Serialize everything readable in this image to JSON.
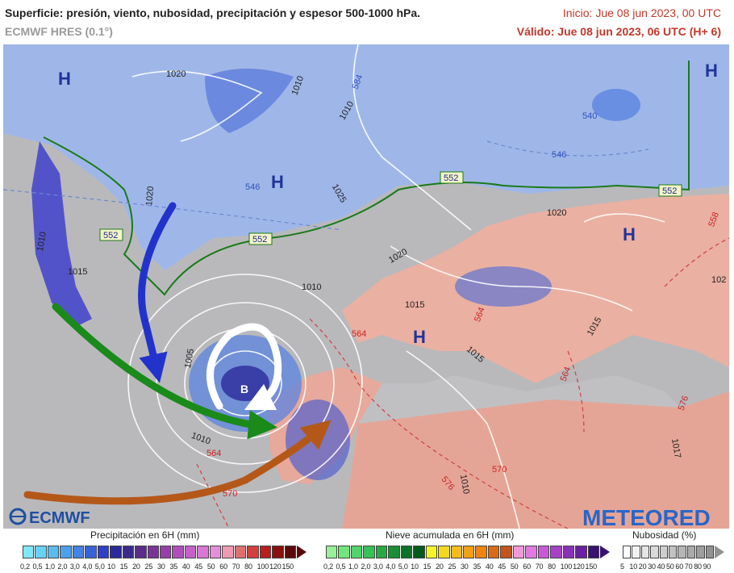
{
  "header": {
    "title": "Superficie: presión, viento, nubosidad, precipitación y espesor 500-1000 hPa.",
    "subtitle": "ECMWF HRES (0.1°)",
    "init_label": "Inicio: Jue 08 jun 2023, 00 UTC",
    "valid_label": "Válido: Jue 08 jun 2023, 06 UTC (H+ 6)"
  },
  "logos": {
    "ecmwf": "ECMWF",
    "meteored": "METEORED"
  },
  "map_labels": {
    "pressure_centers": [
      "H",
      "H",
      "H",
      "H",
      "H",
      "B"
    ],
    "isobars": [
      "1020",
      "1020",
      "1010",
      "1005",
      "1010",
      "1015",
      "1025",
      "1020",
      "1020",
      "1015",
      "1015",
      "1015",
      "1010",
      "1010",
      "1010",
      "1017",
      "1010",
      "102"
    ],
    "thickness_blue": [
      "552",
      "552",
      "552",
      "552",
      "546",
      "546",
      "540",
      "584"
    ],
    "thickness_red": [
      "564",
      "564",
      "564",
      "570",
      "570",
      "576",
      "576",
      "558",
      "564"
    ]
  },
  "legends": {
    "precip": {
      "title": "Precipitación en 6H (mm)",
      "labels": [
        "0,2",
        "0,5",
        "1,0",
        "2,0",
        "3,0",
        "4,0",
        "5,0",
        "10",
        "15",
        "20",
        "25",
        "30",
        "35",
        "40",
        "45",
        "50",
        "60",
        "70",
        "80",
        "100",
        "120",
        "150"
      ],
      "colors": [
        "#7fe8f8",
        "#66d2f5",
        "#5bbcf0",
        "#4fa0ea",
        "#4482e3",
        "#3a62d8",
        "#2f40c8",
        "#2a2a9a",
        "#3b2a8c",
        "#5a2c8c",
        "#7a3498",
        "#9440a8",
        "#ad50ba",
        "#c460c8",
        "#d877d4",
        "#e58fda",
        "#ee9ab0",
        "#e0706f",
        "#d24040",
        "#b82020",
        "#8a1010",
        "#5a0a0a"
      ]
    },
    "snow": {
      "title": "Nieve acumulada en 6H (mm)",
      "labels": [
        "0,2",
        "0,5",
        "1,0",
        "2,0",
        "3,0",
        "4,0",
        "5,0",
        "10",
        "15",
        "20",
        "25",
        "30",
        "35",
        "40",
        "45",
        "50",
        "60",
        "70",
        "80",
        "100",
        "120",
        "150"
      ],
      "colors": [
        "#98f098",
        "#72e47e",
        "#52d46a",
        "#38c056",
        "#28a844",
        "#1a8e36",
        "#0e7228",
        "#055a1c",
        "#f4f428",
        "#f4d820",
        "#f4bc18",
        "#f4a010",
        "#ec8414",
        "#d86a18",
        "#c0541c",
        "#ee9ad8",
        "#e07ae0",
        "#c85ad8",
        "#a840c8",
        "#8830b8",
        "#6a20a0",
        "#3a1070"
      ]
    },
    "cloud": {
      "title": "Nubosidad (%)",
      "labels": [
        "5",
        "10",
        "20",
        "30",
        "40",
        "50",
        "60",
        "70",
        "80",
        "90"
      ],
      "colors": [
        "#ffffff",
        "#f2f2f2",
        "#e6e6e6",
        "#dadada",
        "#cecece",
        "#c2c2c2",
        "#b6b6b6",
        "#aaaaaa",
        "#9e9e9e",
        "#929292"
      ]
    }
  }
}
